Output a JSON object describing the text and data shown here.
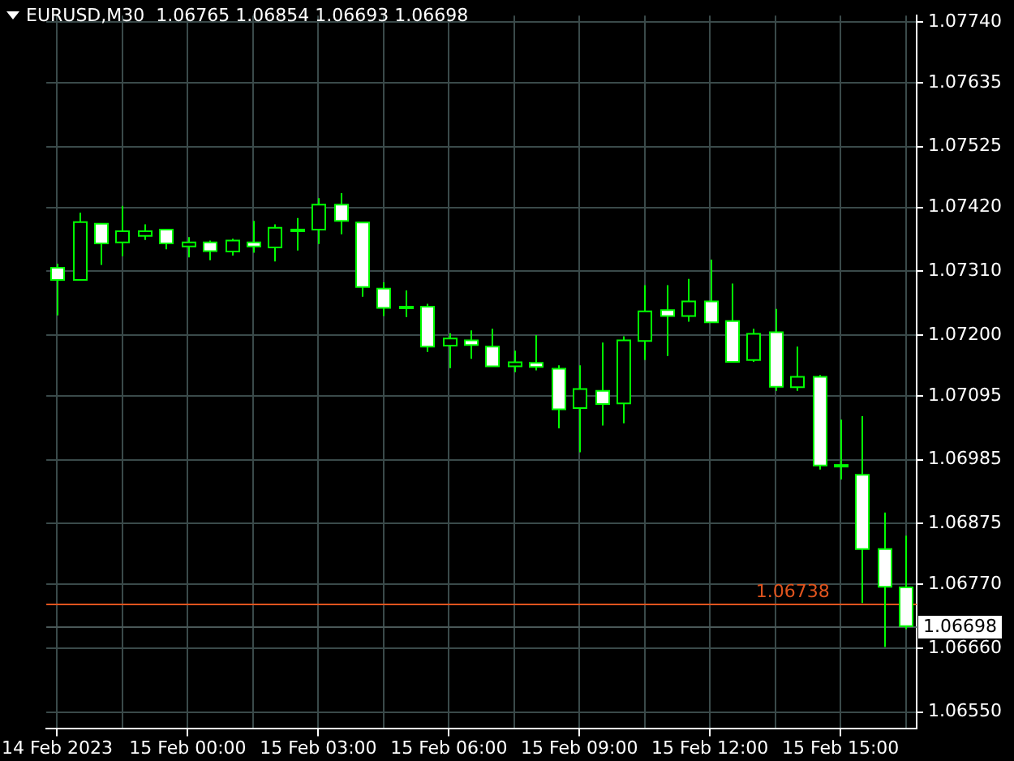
{
  "chart_data": {
    "type": "candlestick",
    "title": "EURUSD,M30  1.06765 1.06854 1.06693 1.06698",
    "categories": [
      "14 Feb 2023",
      null,
      null,
      null,
      null,
      null,
      "15 Feb 00:00",
      null,
      null,
      null,
      null,
      null,
      "15 Feb 03:00",
      null,
      null,
      null,
      null,
      null,
      "15 Feb 06:00",
      null,
      null,
      null,
      null,
      null,
      "15 Feb 09:00",
      null,
      null,
      null,
      null,
      null,
      "15 Feb 12:00",
      null,
      null,
      null,
      null,
      null,
      "15 Feb 15:00",
      null,
      null,
      null
    ],
    "ohlc": [
      [
        1.07316,
        1.07323,
        1.07234,
        1.07295
      ],
      [
        1.07295,
        1.07411,
        1.07294,
        1.07395
      ],
      [
        1.07392,
        1.07393,
        1.07321,
        1.07358
      ],
      [
        1.0736,
        1.07423,
        1.07336,
        1.07379
      ],
      [
        1.07371,
        1.07391,
        1.07364,
        1.07379
      ],
      [
        1.07382,
        1.07383,
        1.07348,
        1.07358
      ],
      [
        1.07353,
        1.07369,
        1.07334,
        1.0736
      ],
      [
        1.0736,
        1.07363,
        1.07329,
        1.07345
      ],
      [
        1.07344,
        1.07366,
        1.07337,
        1.07363
      ],
      [
        1.0736,
        1.07397,
        1.07342,
        1.07353
      ],
      [
        1.07351,
        1.07391,
        1.07327,
        1.07385
      ],
      [
        1.07381,
        1.07402,
        1.07346,
        1.07382
      ],
      [
        1.07382,
        1.07436,
        1.07357,
        1.07425
      ],
      [
        1.07425,
        1.07445,
        1.07374,
        1.07397
      ],
      [
        1.07394,
        1.07394,
        1.07266,
        1.07283
      ],
      [
        1.0728,
        1.07291,
        1.07233,
        1.07247
      ],
      [
        1.07249,
        1.07277,
        1.07231,
        1.07248
      ],
      [
        1.07249,
        1.07254,
        1.07171,
        1.0718
      ],
      [
        1.07182,
        1.07203,
        1.07143,
        1.07194
      ],
      [
        1.07191,
        1.07208,
        1.07159,
        1.07183
      ],
      [
        1.0718,
        1.07211,
        1.07146,
        1.07146
      ],
      [
        1.07146,
        1.07173,
        1.07136,
        1.07153
      ],
      [
        1.07152,
        1.072,
        1.07139,
        1.07145
      ],
      [
        1.07142,
        1.07148,
        1.07039,
        1.07072
      ],
      [
        1.07074,
        1.07148,
        1.06998,
        1.07107
      ],
      [
        1.07104,
        1.07187,
        1.07044,
        1.07081
      ],
      [
        1.07082,
        1.07198,
        1.07048,
        1.07191
      ],
      [
        1.0719,
        1.07286,
        1.07157,
        1.07241
      ],
      [
        1.07243,
        1.07286,
        1.07164,
        1.07233
      ],
      [
        1.07233,
        1.07297,
        1.07223,
        1.07258
      ],
      [
        1.07258,
        1.0733,
        1.07222,
        1.07222
      ],
      [
        1.07224,
        1.07289,
        1.07154,
        1.07154
      ],
      [
        1.07157,
        1.07211,
        1.07154,
        1.07202
      ],
      [
        1.07205,
        1.07245,
        1.07104,
        1.07111
      ],
      [
        1.0711,
        1.0718,
        1.07104,
        1.07128
      ],
      [
        1.07128,
        1.07131,
        1.06968,
        1.06975
      ],
      [
        1.06975,
        1.07054,
        1.06951,
        1.06976
      ],
      [
        1.06959,
        1.0706,
        1.06738,
        1.06831
      ],
      [
        1.06831,
        1.06894,
        1.06662,
        1.06766
      ],
      [
        1.06765,
        1.06854,
        1.06693,
        1.06698
      ]
    ],
    "ylim": [
      1.06522,
      1.07751
    ],
    "yticks": [
      {
        "value": 1.0774,
        "label": "1.07740"
      },
      1.07635,
      1.07525,
      {
        "value": 1.0742,
        "label": "1.07420"
      },
      {
        "value": 1.0731,
        "label": "1.07310"
      },
      {
        "value": 1.072,
        "label": "1.07200"
      },
      1.07095,
      1.06985,
      1.06875,
      {
        "value": 1.0677,
        "label": "1.06770"
      },
      {
        "value": 1.0666,
        "label": "1.06660"
      },
      {
        "value": 1.0655,
        "label": "1.06550"
      }
    ],
    "ref_lines": [
      {
        "axis": "y",
        "value": 1.06738,
        "label": "1.06738",
        "color": "#e0541e"
      },
      {
        "axis": "y",
        "value": 1.06698,
        "label": "1.06698",
        "color": "#4a5858"
      }
    ],
    "grid": true
  }
}
